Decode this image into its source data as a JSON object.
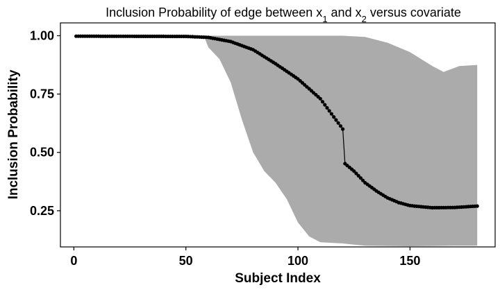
{
  "chart_data": {
    "type": "line",
    "title": {
      "prefix": "Inclusion Probability of edge between x",
      "sub1": "1",
      "middle": " and x",
      "sub2": "2",
      "suffix": " versus covariate"
    },
    "xlabel": "Subject Index",
    "ylabel": "Inclusion Probability",
    "xlim": [
      -6,
      188
    ],
    "ylim": [
      0.095,
      1.055
    ],
    "x_ticks": [
      0,
      50,
      100,
      150
    ],
    "x_tick_labels": [
      "0",
      "50",
      "100",
      "150"
    ],
    "y_ticks": [
      0.25,
      0.5,
      0.75,
      1.0
    ],
    "y_tick_labels": [
      "0.25",
      "0.50",
      "0.75",
      "1.00"
    ],
    "grid": false,
    "colors": {
      "band": "#ababab",
      "line": "#000000",
      "points": "#000000"
    },
    "band_upper": [
      [
        1,
        1.0
      ],
      [
        60,
        1.0
      ],
      [
        120,
        1.0
      ],
      [
        130,
        0.995
      ],
      [
        140,
        0.97
      ],
      [
        150,
        0.93
      ],
      [
        160,
        0.87
      ],
      [
        165,
        0.845
      ],
      [
        172,
        0.87
      ],
      [
        180,
        0.875
      ]
    ],
    "band_lower": [
      [
        1,
        1.0
      ],
      [
        58,
        1.0
      ],
      [
        60,
        0.95
      ],
      [
        65,
        0.9
      ],
      [
        70,
        0.8
      ],
      [
        75,
        0.64
      ],
      [
        80,
        0.5
      ],
      [
        85,
        0.42
      ],
      [
        90,
        0.37
      ],
      [
        95,
        0.3
      ],
      [
        100,
        0.2
      ],
      [
        105,
        0.14
      ],
      [
        110,
        0.115
      ],
      [
        120,
        0.11
      ],
      [
        130,
        0.1
      ],
      [
        150,
        0.098
      ],
      [
        170,
        0.1
      ],
      [
        180,
        0.1
      ]
    ],
    "series": [
      {
        "values_knots": [
          [
            1,
            0.998
          ],
          [
            50,
            0.997
          ],
          [
            60,
            0.993
          ],
          [
            70,
            0.975
          ],
          [
            80,
            0.94
          ],
          [
            90,
            0.88
          ],
          [
            100,
            0.815
          ],
          [
            110,
            0.73
          ],
          [
            115,
            0.665
          ],
          [
            120,
            0.6
          ],
          [
            121,
            0.452
          ],
          [
            125,
            0.42
          ],
          [
            130,
            0.37
          ],
          [
            135,
            0.335
          ],
          [
            140,
            0.305
          ],
          [
            145,
            0.285
          ],
          [
            150,
            0.272
          ],
          [
            160,
            0.263
          ],
          [
            170,
            0.264
          ],
          [
            180,
            0.27
          ]
        ]
      }
    ]
  }
}
